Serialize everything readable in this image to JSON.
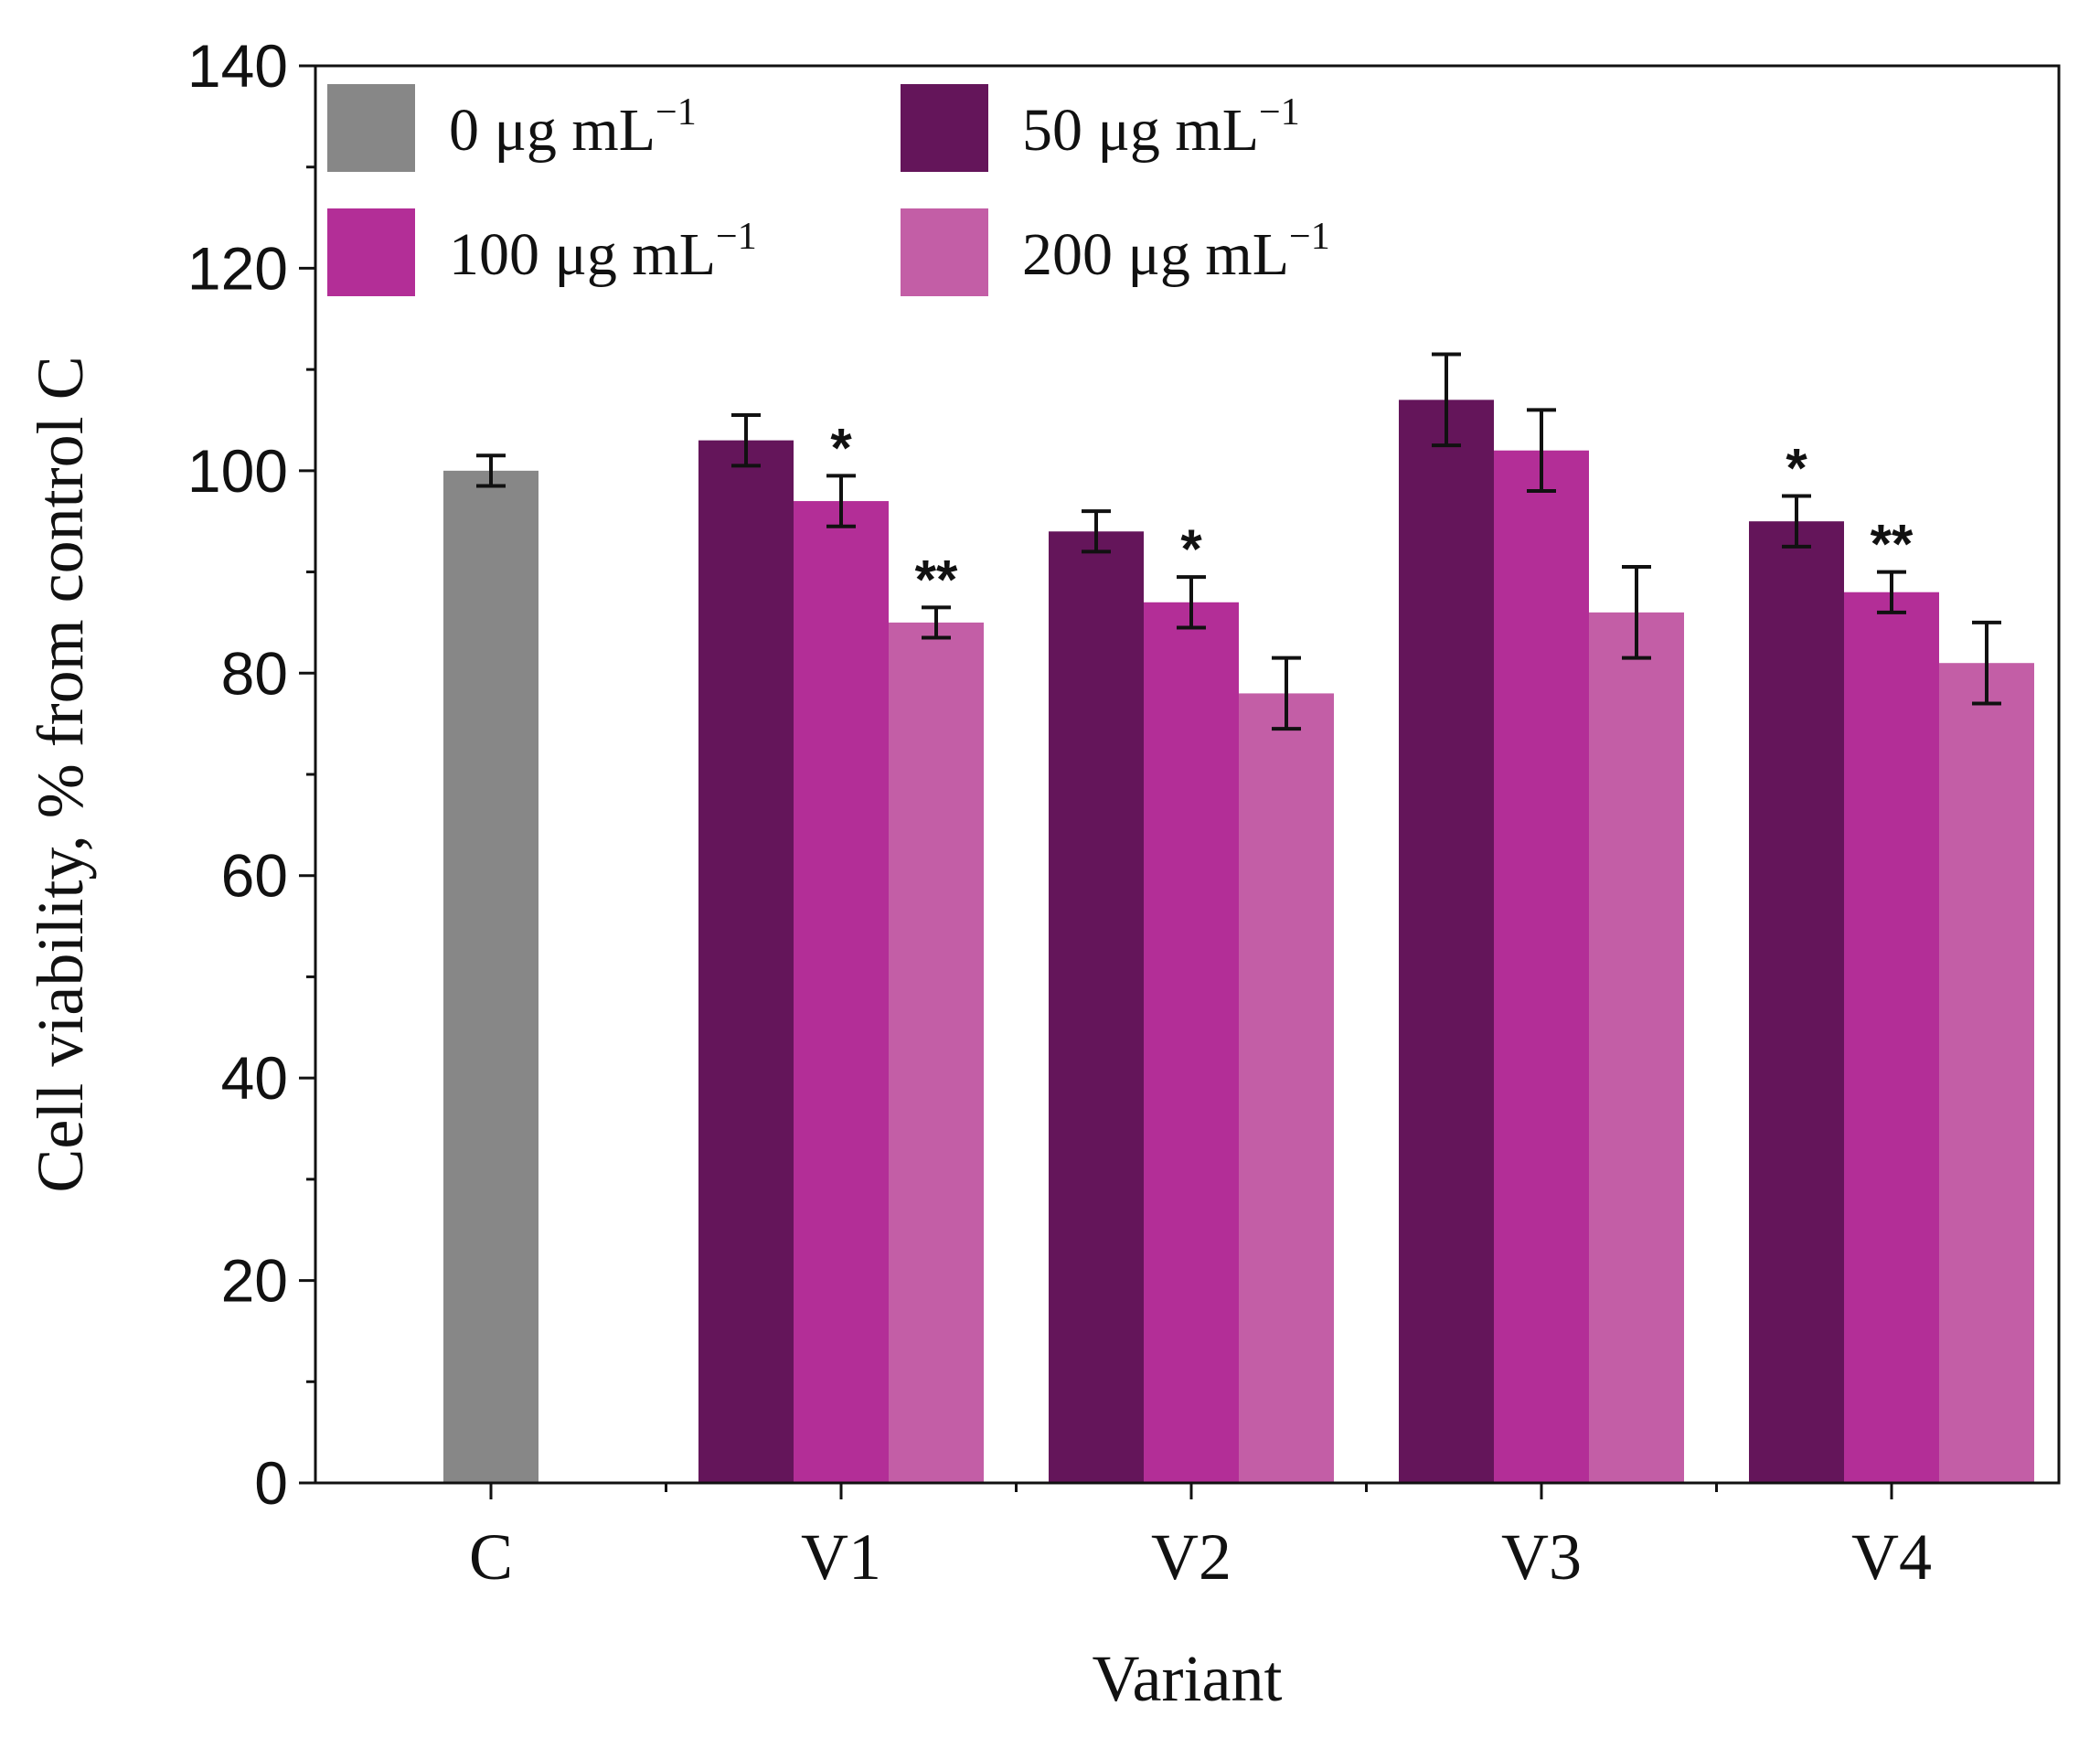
{
  "chart_data": {
    "type": "bar",
    "title": "",
    "xlabel": "Variant",
    "ylabel": "Cell viability, % from control C",
    "ylim": [
      0,
      140
    ],
    "yticks": [
      0,
      20,
      40,
      60,
      80,
      100,
      120,
      140
    ],
    "categories": [
      "C",
      "V1",
      "V2",
      "V3",
      "V4"
    ],
    "legend_position": "top-left",
    "series": [
      {
        "name": "0 μg mL",
        "unit_exponent": "−1",
        "color": "#878787",
        "values": [
          100,
          null,
          null,
          null,
          null
        ],
        "errors": [
          1.5,
          null,
          null,
          null,
          null
        ],
        "significance": [
          "",
          "",
          "",
          "",
          ""
        ]
      },
      {
        "name": "50 μg mL",
        "unit_exponent": "−1",
        "color": "#64155a",
        "values": [
          null,
          103,
          94,
          107,
          95
        ],
        "errors": [
          null,
          2.5,
          2,
          4.5,
          2.5
        ],
        "significance": [
          "",
          "",
          "",
          "",
          "*"
        ]
      },
      {
        "name": "100 μg mL",
        "unit_exponent": "−1",
        "color": "#b32e97",
        "values": [
          null,
          97,
          87,
          102,
          88
        ],
        "errors": [
          null,
          2.5,
          2.5,
          4,
          2
        ],
        "significance": [
          "",
          "*",
          "*",
          "",
          "**"
        ]
      },
      {
        "name": "200 μg mL",
        "unit_exponent": "−1",
        "color": "#c35ea6",
        "values": [
          null,
          85,
          78,
          86,
          81
        ],
        "errors": [
          null,
          1.5,
          3.5,
          4.5,
          4
        ],
        "significance": [
          "",
          "**",
          "",
          "",
          ""
        ]
      }
    ]
  }
}
